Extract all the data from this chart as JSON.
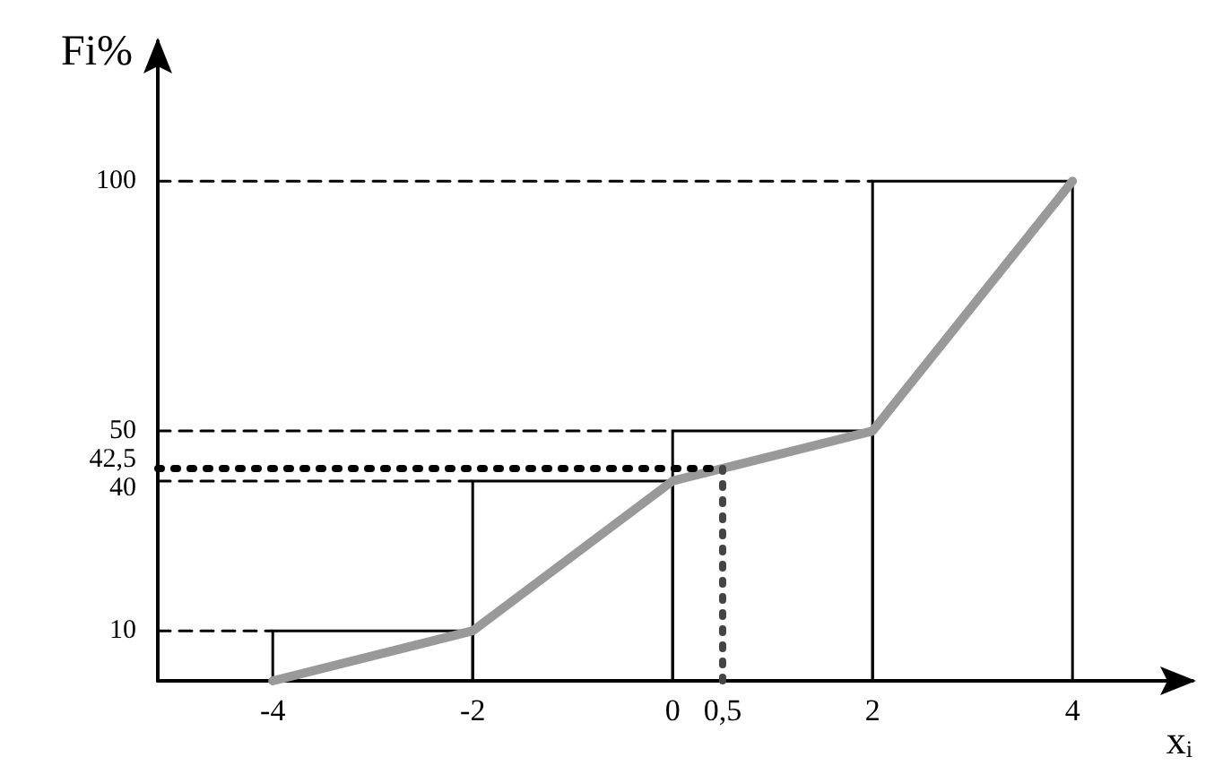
{
  "chart_data": {
    "type": "histogram",
    "xlabel": "xᵢ",
    "ylabel": "Fi%",
    "bins": [
      -4,
      -2,
      0,
      2,
      4
    ],
    "values": [
      10,
      40,
      50,
      100
    ],
    "color": "#000000",
    "series": [
      {
        "type": "line",
        "x": [
          -4,
          -2,
          0,
          2,
          4
        ],
        "values": [
          0,
          10,
          40,
          50,
          100
        ],
        "color": "#999999"
      }
    ],
    "xlim": [
      -5.15,
      5.2
    ],
    "ylim": [
      0,
      128
    ],
    "xticks": [
      -4,
      -2,
      0,
      {
        "value": 0.5,
        "label": "0,5"
      },
      2,
      4
    ],
    "yticks": [
      10,
      40,
      {
        "value": 42.5,
        "label": "42,5"
      },
      50,
      100
    ],
    "ref_lines": [
      {
        "axis": "y",
        "value": 10,
        "line_style": "dashed",
        "color": "#000000"
      },
      {
        "axis": "y",
        "value": 40,
        "line_style": "dashed",
        "color": "#000000"
      },
      {
        "axis": "y",
        "value": 50,
        "line_style": "dashed",
        "color": "#000000"
      },
      {
        "axis": "y",
        "value": 100,
        "line_style": "dashed",
        "color": "#000000"
      },
      {
        "axis": "y",
        "value": 42.5,
        "line_style": "dotted",
        "color": "#000000"
      },
      {
        "axis": "x",
        "value": 0.5,
        "line_style": "dotted",
        "color": "#444444"
      }
    ],
    "grid": false,
    "legend": false,
    "marker": "none"
  }
}
